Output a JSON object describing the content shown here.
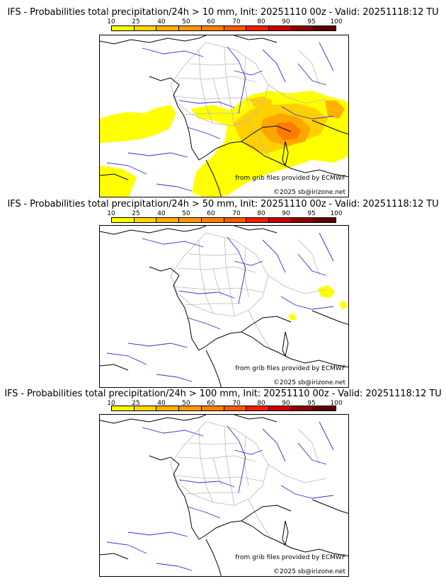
{
  "panels": [
    {
      "title": "IFS - Probabilities total precipitation/24h > 10 mm, Init: 20251110 00z - Valid: 20251118:12 TU",
      "threshold": "10 mm"
    },
    {
      "title": "IFS - Probabilities total precipitation/24h > 50 mm, Init: 20251110 00z - Valid: 20251118:12 TU",
      "threshold": "50 mm"
    },
    {
      "title": "IFS - Probabilities total precipitation/24h > 100 mm, Init: 20251110 00z - Valid: 20251118:12 TU",
      "threshold": "100 mm"
    }
  ],
  "colorbar": {
    "ticks": [
      "10",
      "25",
      "40",
      "50",
      "60",
      "70",
      "80",
      "90",
      "95",
      "100"
    ],
    "colors": [
      "#ffff00",
      "#ffd700",
      "#ffb000",
      "#ff9a00",
      "#ff7f00",
      "#ff5a00",
      "#f21d00",
      "#c80000",
      "#900000",
      "#5a0000"
    ]
  },
  "credits": {
    "source": "from grib files provided by ECMWF",
    "copyright": "©2025 sb@irizone.net"
  },
  "colors": {
    "coast": "#000000",
    "rivers": "#3030d0",
    "borders": "#b8b8b8",
    "prob_low": "#ffff00",
    "prob_mid": "#ffd000",
    "prob_high": "#ffa500",
    "prob_top": "#ff7a00"
  }
}
